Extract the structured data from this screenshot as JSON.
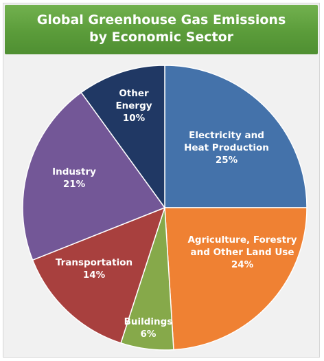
{
  "chart_data": {
    "type": "pie",
    "title": [
      "Global Greenhouse Gas Emissions",
      "by Economic Sector"
    ],
    "slices": [
      {
        "label": [
          "Electricity and",
          "Heat Production"
        ],
        "value": 25,
        "value_label": "25%",
        "color": "#4472aa"
      },
      {
        "label": [
          "Agriculture, Forestry",
          "and Other Land Use"
        ],
        "value": 24,
        "value_label": "24%",
        "color": "#ef8133"
      },
      {
        "label": [
          "Buildings"
        ],
        "value": 6,
        "value_label": "6%",
        "color": "#86a94a"
      },
      {
        "label": [
          "Transportation"
        ],
        "value": 14,
        "value_label": "14%",
        "color": "#a8403e"
      },
      {
        "label": [
          "Industry"
        ],
        "value": 21,
        "value_label": "21%",
        "color": "#735797"
      },
      {
        "label": [
          "Other",
          "Energy"
        ],
        "value": 10,
        "value_label": "10%",
        "color": "#203864"
      }
    ]
  }
}
